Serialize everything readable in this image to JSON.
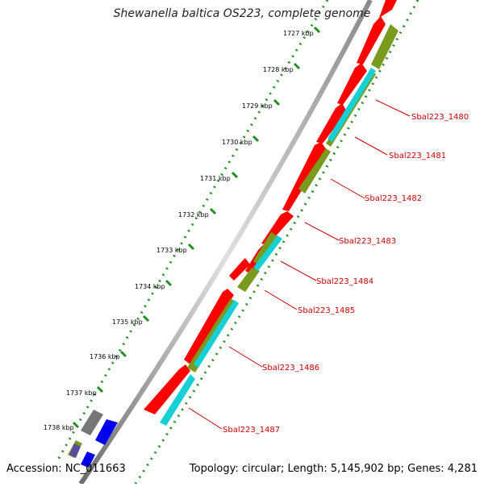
{
  "title": "Shewanella baltica OS223, complete genome",
  "footer": {
    "accession": "Accession: NC_011663",
    "summary": "Topology: circular; Length: 5,145,902 bp; Genes: 4,281"
  },
  "ticks": [
    "1727 kbp",
    "1728 kbp",
    "1729 kbp",
    "1730 kbp",
    "1731 kbp",
    "1732 kbp",
    "1733 kbp",
    "1734 kbp",
    "1735 kbp",
    "1736 kbp",
    "1737 kbp",
    "1738 kbp"
  ],
  "gene_labels": [
    "Sbal223_1480",
    "Sbal223_1481",
    "Sbal223_1482",
    "Sbal223_1483",
    "Sbal223_1484",
    "Sbal223_1485",
    "Sbal223_1486",
    "Sbal223_1487"
  ],
  "colors": {
    "cds": "#ff0000",
    "olive": "#7a9a1e",
    "cyan": "#17d0d6",
    "gray": "#777777",
    "blue": "#0000ee",
    "purple": "#5b4a9e",
    "label": "#cc0000",
    "tick_green": "#1f8f1f",
    "backbone": "#9a9a9a"
  }
}
